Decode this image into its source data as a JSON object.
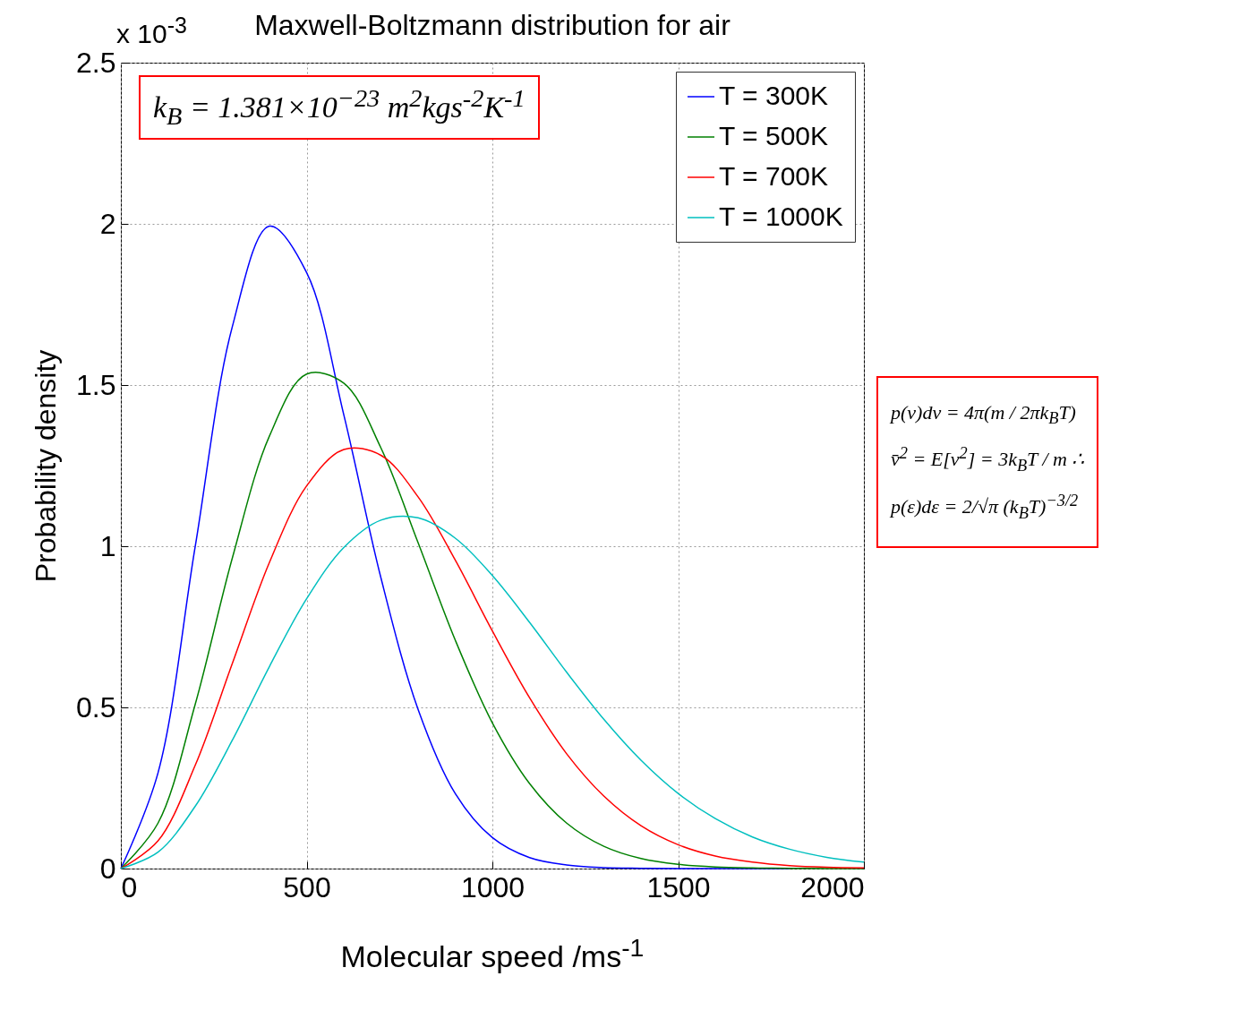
{
  "chart_data": {
    "type": "line",
    "title": "Maxwell-Boltzmann distribution for air",
    "xlabel": "Molecular speed /ms$^{-1}$",
    "ylabel": "Probability density",
    "x": [
      0,
      100,
      200,
      300,
      400,
      500,
      600,
      700,
      800,
      900,
      1000,
      1100,
      1200,
      1300,
      1400,
      1500,
      1600,
      1700,
      1800,
      1900,
      2000
    ],
    "series": [
      {
        "name": "T = 300K",
        "color": "#0000ff",
        "values": [
          0,
          0.297,
          0.998,
          1.681,
          1.993,
          1.849,
          1.408,
          0.902,
          0.494,
          0.233,
          0.096,
          0.034,
          0.011,
          0.003,
          0.001,
          0,
          0,
          0,
          0,
          null,
          null
        ]
      },
      {
        "name": "T = 500K",
        "color": "#008000",
        "values": [
          0,
          0.141,
          0.509,
          0.963,
          1.342,
          1.534,
          1.506,
          1.305,
          1.011,
          0.709,
          0.452,
          0.264,
          0.141,
          0.069,
          0.031,
          0.013,
          0.005,
          0.002,
          0.001,
          0,
          0
        ]
      },
      {
        "name": "T = 700K",
        "color": "#ff0000",
        "values": [
          0,
          0.086,
          0.32,
          0.636,
          0.95,
          1.187,
          1.3,
          1.282,
          1.153,
          0.957,
          0.737,
          0.53,
          0.356,
          0.225,
          0.133,
          0.074,
          0.039,
          0.02,
          0.009,
          0.004,
          0.002
        ]
      },
      {
        "name": "T = 1000K",
        "color": "#00bfbf",
        "values": [
          0,
          0.051,
          0.193,
          0.398,
          0.627,
          0.837,
          0.996,
          1.081,
          1.088,
          1.025,
          0.909,
          0.764,
          0.609,
          0.463,
          0.336,
          0.233,
          0.155,
          0.098,
          0.06,
          0.035,
          0.02
        ]
      }
    ],
    "xlim": [
      0,
      2000
    ],
    "xticks": [
      0,
      500,
      1000,
      1500,
      2000
    ],
    "ylim": [
      0,
      2.5
    ],
    "yticks": [
      0,
      0.5,
      1,
      1.5,
      2,
      2.5
    ],
    "grid": true,
    "legend": "top right",
    "marker": "none",
    "line_style": "solid",
    "annotations": [
      "x 10$^{-3}$",
      "k$_{B}$ = 1.381×10$^{−23}$ m$^{2}$kgs$^{-2}$K$^{-1}$",
      "p(v)dv = 4π(m / 2πk$_{B}$T)",
      "v̄$^{2}$ = E[v$^{2}$] = 3k$_{B}$T / m  ∴",
      "p(ε)dε = 2/√π (k$_{B}$T)$^{−3/2}$"
    ]
  }
}
